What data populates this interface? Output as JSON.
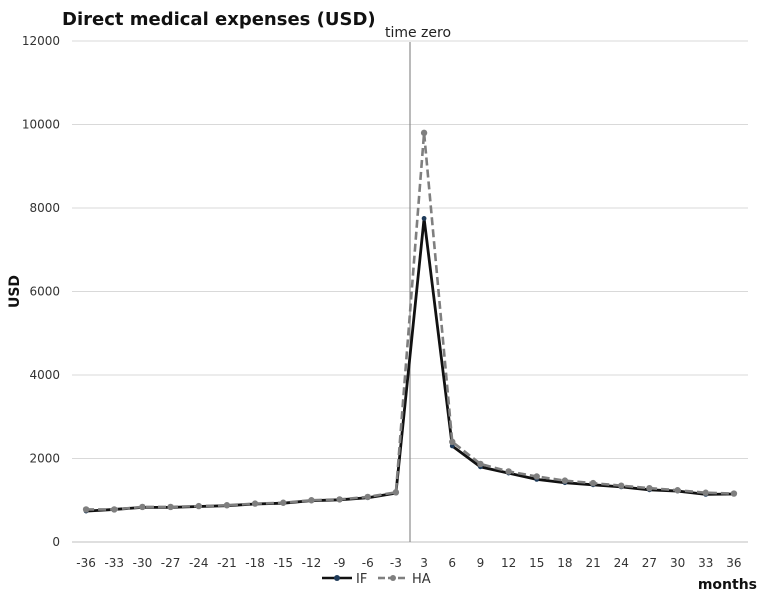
{
  "chart_data": {
    "type": "line",
    "title": "Direct medical expenses (USD)",
    "xlabel": "months",
    "ylabel": "USD",
    "ylim": [
      0,
      12000
    ],
    "yticks": [
      0,
      2000,
      4000,
      6000,
      8000,
      10000,
      12000
    ],
    "grid": true,
    "legend_position": "bottom",
    "annotation": {
      "text": "time zero",
      "x_between": [
        "-3",
        "3"
      ]
    },
    "categories": [
      "-36",
      "-33",
      "-30",
      "-27",
      "-24",
      "-21",
      "-18",
      "-15",
      "-12",
      "-9",
      "-6",
      "-3",
      "3",
      "6",
      "9",
      "12",
      "15",
      "18",
      "21",
      "24",
      "27",
      "30",
      "33",
      "36"
    ],
    "series": [
      {
        "name": "IF",
        "color": "#111111",
        "style": "solid",
        "values": [
          740,
          780,
          830,
          830,
          850,
          870,
          910,
          930,
          990,
          1010,
          1060,
          1170,
          7750,
          2300,
          1800,
          1650,
          1500,
          1420,
          1370,
          1320,
          1250,
          1220,
          1140,
          1150
        ]
      },
      {
        "name": "HA",
        "color": "#7f7f7f",
        "style": "dashed",
        "values": [
          780,
          780,
          840,
          840,
          860,
          880,
          920,
          940,
          1000,
          1020,
          1080,
          1190,
          9800,
          2400,
          1870,
          1690,
          1570,
          1470,
          1410,
          1350,
          1290,
          1240,
          1180,
          1160
        ]
      }
    ]
  }
}
